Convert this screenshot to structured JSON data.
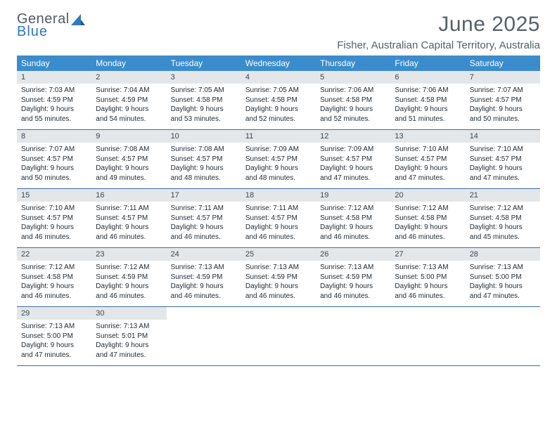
{
  "brand": {
    "word1": "General",
    "word2": "Blue"
  },
  "title": "June 2025",
  "location": "Fisher, Australian Capital Territory, Australia",
  "colors": {
    "header_bg": "#3b8ccc",
    "header_text": "#ffffff",
    "daynum_bg": "#e4e7ea",
    "week_border": "#3b6f9b",
    "title_color": "#566068",
    "brand_gray": "#555a60",
    "brand_blue": "#2f79c2",
    "body_text": "#1f2a33",
    "page_bg": "#ffffff"
  },
  "fonts": {
    "body_pt": 10,
    "daynum_pt": 11,
    "dow_pt": 12,
    "title_pt": 30,
    "location_pt": 15
  },
  "days_of_week": [
    "Sunday",
    "Monday",
    "Tuesday",
    "Wednesday",
    "Thursday",
    "Friday",
    "Saturday"
  ],
  "weeks": [
    [
      {
        "n": "1",
        "sr": "Sunrise: 7:03 AM",
        "ss": "Sunset: 4:59 PM",
        "d1": "Daylight: 9 hours",
        "d2": "and 55 minutes."
      },
      {
        "n": "2",
        "sr": "Sunrise: 7:04 AM",
        "ss": "Sunset: 4:59 PM",
        "d1": "Daylight: 9 hours",
        "d2": "and 54 minutes."
      },
      {
        "n": "3",
        "sr": "Sunrise: 7:05 AM",
        "ss": "Sunset: 4:58 PM",
        "d1": "Daylight: 9 hours",
        "d2": "and 53 minutes."
      },
      {
        "n": "4",
        "sr": "Sunrise: 7:05 AM",
        "ss": "Sunset: 4:58 PM",
        "d1": "Daylight: 9 hours",
        "d2": "and 52 minutes."
      },
      {
        "n": "5",
        "sr": "Sunrise: 7:06 AM",
        "ss": "Sunset: 4:58 PM",
        "d1": "Daylight: 9 hours",
        "d2": "and 52 minutes."
      },
      {
        "n": "6",
        "sr": "Sunrise: 7:06 AM",
        "ss": "Sunset: 4:58 PM",
        "d1": "Daylight: 9 hours",
        "d2": "and 51 minutes."
      },
      {
        "n": "7",
        "sr": "Sunrise: 7:07 AM",
        "ss": "Sunset: 4:57 PM",
        "d1": "Daylight: 9 hours",
        "d2": "and 50 minutes."
      }
    ],
    [
      {
        "n": "8",
        "sr": "Sunrise: 7:07 AM",
        "ss": "Sunset: 4:57 PM",
        "d1": "Daylight: 9 hours",
        "d2": "and 50 minutes."
      },
      {
        "n": "9",
        "sr": "Sunrise: 7:08 AM",
        "ss": "Sunset: 4:57 PM",
        "d1": "Daylight: 9 hours",
        "d2": "and 49 minutes."
      },
      {
        "n": "10",
        "sr": "Sunrise: 7:08 AM",
        "ss": "Sunset: 4:57 PM",
        "d1": "Daylight: 9 hours",
        "d2": "and 48 minutes."
      },
      {
        "n": "11",
        "sr": "Sunrise: 7:09 AM",
        "ss": "Sunset: 4:57 PM",
        "d1": "Daylight: 9 hours",
        "d2": "and 48 minutes."
      },
      {
        "n": "12",
        "sr": "Sunrise: 7:09 AM",
        "ss": "Sunset: 4:57 PM",
        "d1": "Daylight: 9 hours",
        "d2": "and 47 minutes."
      },
      {
        "n": "13",
        "sr": "Sunrise: 7:10 AM",
        "ss": "Sunset: 4:57 PM",
        "d1": "Daylight: 9 hours",
        "d2": "and 47 minutes."
      },
      {
        "n": "14",
        "sr": "Sunrise: 7:10 AM",
        "ss": "Sunset: 4:57 PM",
        "d1": "Daylight: 9 hours",
        "d2": "and 47 minutes."
      }
    ],
    [
      {
        "n": "15",
        "sr": "Sunrise: 7:10 AM",
        "ss": "Sunset: 4:57 PM",
        "d1": "Daylight: 9 hours",
        "d2": "and 46 minutes."
      },
      {
        "n": "16",
        "sr": "Sunrise: 7:11 AM",
        "ss": "Sunset: 4:57 PM",
        "d1": "Daylight: 9 hours",
        "d2": "and 46 minutes."
      },
      {
        "n": "17",
        "sr": "Sunrise: 7:11 AM",
        "ss": "Sunset: 4:57 PM",
        "d1": "Daylight: 9 hours",
        "d2": "and 46 minutes."
      },
      {
        "n": "18",
        "sr": "Sunrise: 7:11 AM",
        "ss": "Sunset: 4:57 PM",
        "d1": "Daylight: 9 hours",
        "d2": "and 46 minutes."
      },
      {
        "n": "19",
        "sr": "Sunrise: 7:12 AM",
        "ss": "Sunset: 4:58 PM",
        "d1": "Daylight: 9 hours",
        "d2": "and 46 minutes."
      },
      {
        "n": "20",
        "sr": "Sunrise: 7:12 AM",
        "ss": "Sunset: 4:58 PM",
        "d1": "Daylight: 9 hours",
        "d2": "and 46 minutes."
      },
      {
        "n": "21",
        "sr": "Sunrise: 7:12 AM",
        "ss": "Sunset: 4:58 PM",
        "d1": "Daylight: 9 hours",
        "d2": "and 45 minutes."
      }
    ],
    [
      {
        "n": "22",
        "sr": "Sunrise: 7:12 AM",
        "ss": "Sunset: 4:58 PM",
        "d1": "Daylight: 9 hours",
        "d2": "and 46 minutes."
      },
      {
        "n": "23",
        "sr": "Sunrise: 7:12 AM",
        "ss": "Sunset: 4:59 PM",
        "d1": "Daylight: 9 hours",
        "d2": "and 46 minutes."
      },
      {
        "n": "24",
        "sr": "Sunrise: 7:13 AM",
        "ss": "Sunset: 4:59 PM",
        "d1": "Daylight: 9 hours",
        "d2": "and 46 minutes."
      },
      {
        "n": "25",
        "sr": "Sunrise: 7:13 AM",
        "ss": "Sunset: 4:59 PM",
        "d1": "Daylight: 9 hours",
        "d2": "and 46 minutes."
      },
      {
        "n": "26",
        "sr": "Sunrise: 7:13 AM",
        "ss": "Sunset: 4:59 PM",
        "d1": "Daylight: 9 hours",
        "d2": "and 46 minutes."
      },
      {
        "n": "27",
        "sr": "Sunrise: 7:13 AM",
        "ss": "Sunset: 5:00 PM",
        "d1": "Daylight: 9 hours",
        "d2": "and 46 minutes."
      },
      {
        "n": "28",
        "sr": "Sunrise: 7:13 AM",
        "ss": "Sunset: 5:00 PM",
        "d1": "Daylight: 9 hours",
        "d2": "and 47 minutes."
      }
    ],
    [
      {
        "n": "29",
        "sr": "Sunrise: 7:13 AM",
        "ss": "Sunset: 5:00 PM",
        "d1": "Daylight: 9 hours",
        "d2": "and 47 minutes."
      },
      {
        "n": "30",
        "sr": "Sunrise: 7:13 AM",
        "ss": "Sunset: 5:01 PM",
        "d1": "Daylight: 9 hours",
        "d2": "and 47 minutes."
      },
      null,
      null,
      null,
      null,
      null
    ]
  ]
}
